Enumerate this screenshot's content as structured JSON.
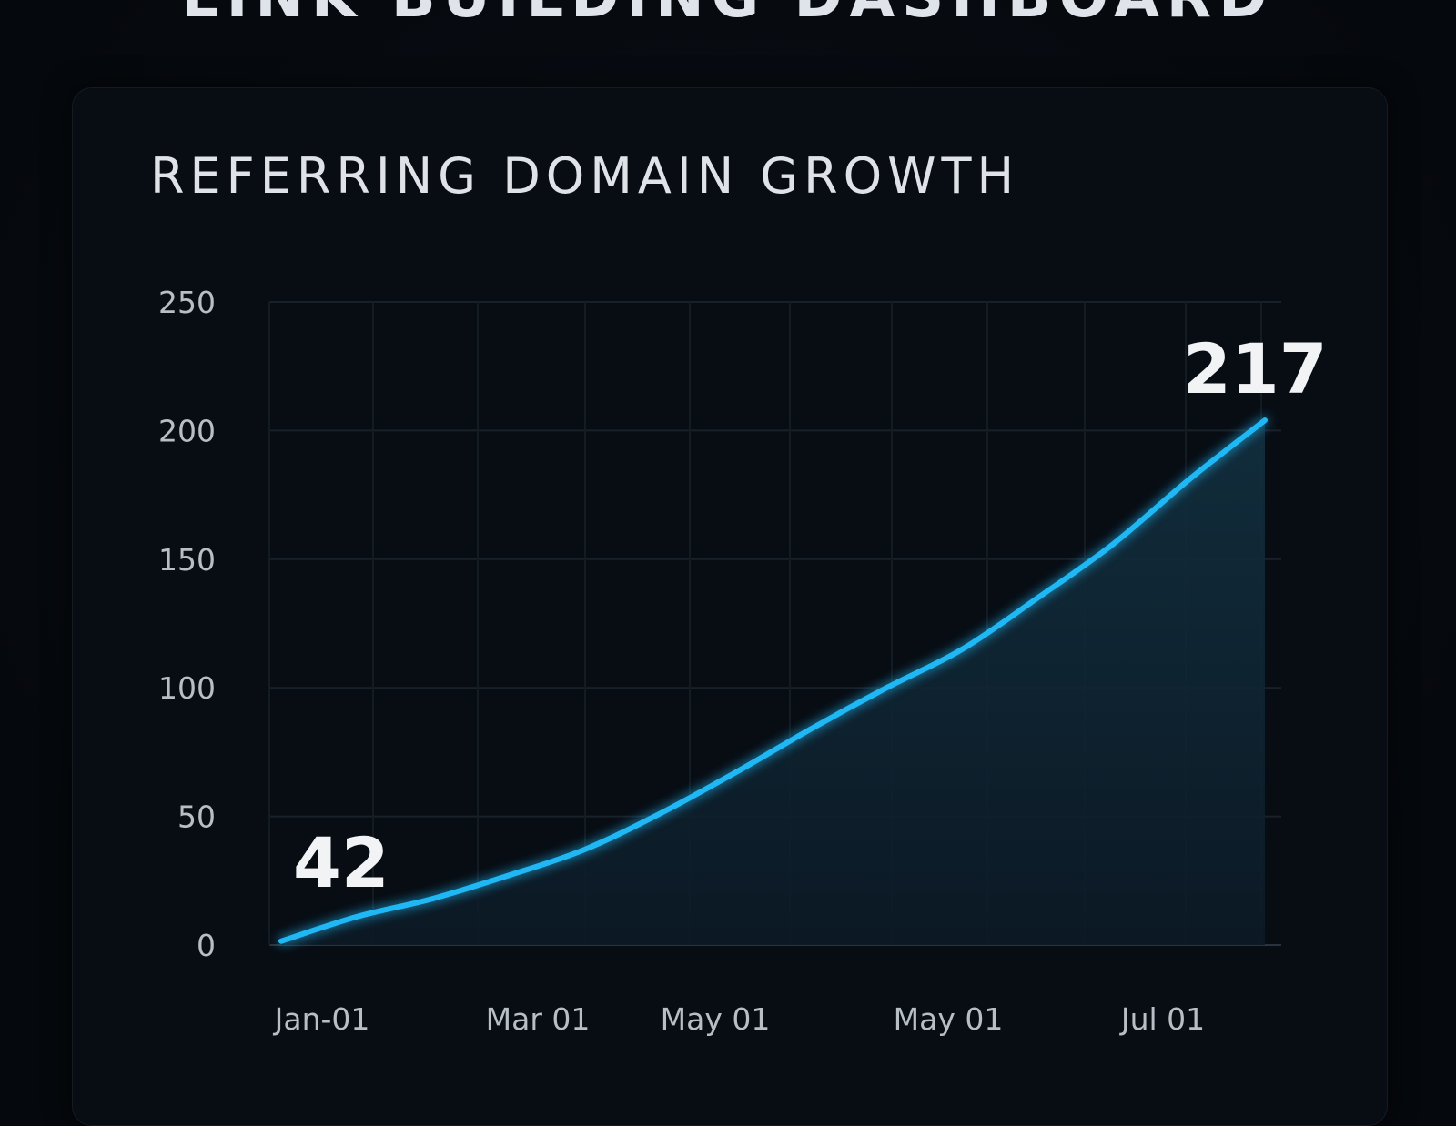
{
  "header": {
    "title": "LINK BUILDING DASHBOARD"
  },
  "card": {
    "title": "REFERRING DOMAIN GROWTH"
  },
  "chart_data": {
    "type": "area",
    "title": "REFERRING DOMAIN GROWTH",
    "xlabel": "",
    "ylabel": "",
    "ylim": [
      0,
      250
    ],
    "yticks": [
      0,
      50,
      100,
      150,
      200,
      250
    ],
    "ytick_labels": [
      "0",
      "50",
      "100",
      "150",
      "200",
      "250"
    ],
    "xtick_labels": [
      "Jan-01",
      "Mar 01",
      "May 01",
      "May 01",
      "Jul 01"
    ],
    "grid": true,
    "series": [
      {
        "values": [
          1.5,
          11,
          18,
          27,
          37,
          51,
          67,
          84,
          100,
          115,
          135,
          156,
          181,
          204
        ]
      }
    ],
    "annotations": [
      {
        "label": "42"
      },
      {
        "label": "217"
      }
    ],
    "line_color": "#1fb8f5",
    "fill_color": "#0f2433"
  }
}
